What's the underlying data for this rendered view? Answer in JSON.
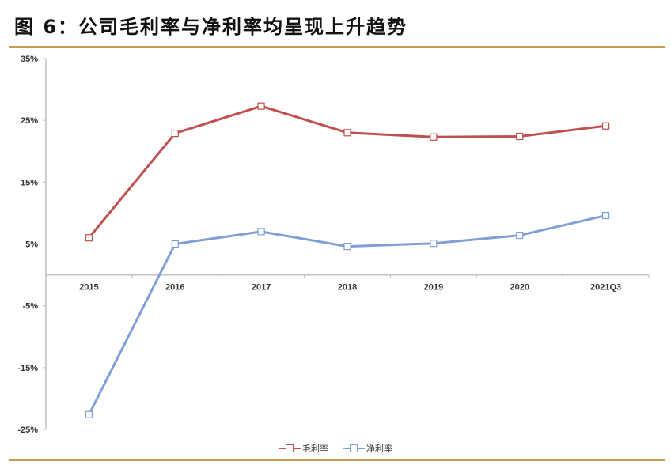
{
  "header": {
    "title": "图 6：公司毛利率与净利率均呈现上升趋势"
  },
  "colors": {
    "gross_margin": "#c0504d",
    "net_margin": "#7f9fd6",
    "rule": "#c89a55",
    "axis": "#bfbfbf"
  },
  "legend": [
    {
      "label": "毛利率",
      "color": "#c0504d"
    },
    {
      "label": "净利率",
      "color": "#7f9fd6"
    }
  ],
  "chart_data": {
    "type": "line",
    "title": "图 6：公司毛利率与净利率均呈现上升趋势",
    "xlabel": "",
    "ylabel": "",
    "categories": [
      "2015",
      "2016",
      "2017",
      "2018",
      "2019",
      "2020",
      "2021Q3"
    ],
    "series": [
      {
        "name": "毛利率",
        "values": [
          6.0,
          22.9,
          27.3,
          23.0,
          22.3,
          22.4,
          24.1
        ]
      },
      {
        "name": "净利率",
        "values": [
          -22.6,
          5.0,
          7.0,
          4.6,
          5.1,
          6.4,
          9.6
        ]
      }
    ],
    "yticks": [
      "35%",
      "25%",
      "15%",
      "5%",
      "-5%",
      "-15%",
      "-25%"
    ],
    "ylim": [
      -25,
      35
    ],
    "unit": "%",
    "grid": false,
    "legend_position": "bottom"
  }
}
